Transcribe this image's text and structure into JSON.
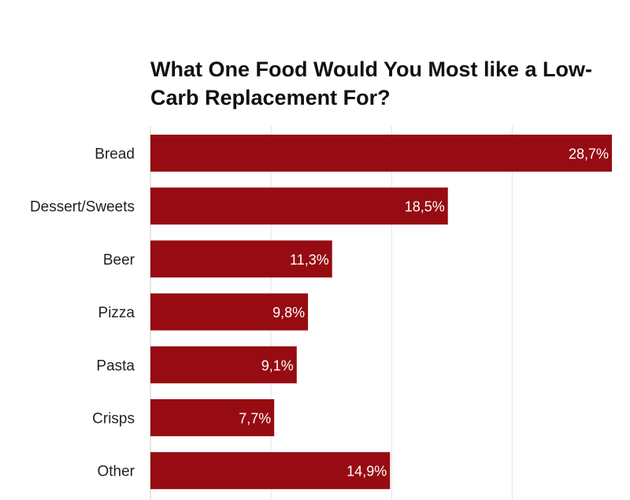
{
  "chart_data": {
    "type": "bar",
    "orientation": "horizontal",
    "title": "What One Food Would You Most like a Low-Carb Replacement For?",
    "categories": [
      "Bread",
      "Dessert/Sweets",
      "Beer",
      "Pizza",
      "Pasta",
      "Crisps",
      "Other"
    ],
    "values": [
      28.7,
      18.5,
      11.3,
      9.8,
      9.1,
      7.7,
      14.9
    ],
    "data_labels": [
      "28,7%",
      "18,5%",
      "11,3%",
      "9,8%",
      "9,1%",
      "7,7%",
      "14,9%"
    ],
    "xlim": [
      0,
      28.7
    ],
    "grid_step": 7.5,
    "grid": true,
    "bar_color": "#960c12"
  }
}
